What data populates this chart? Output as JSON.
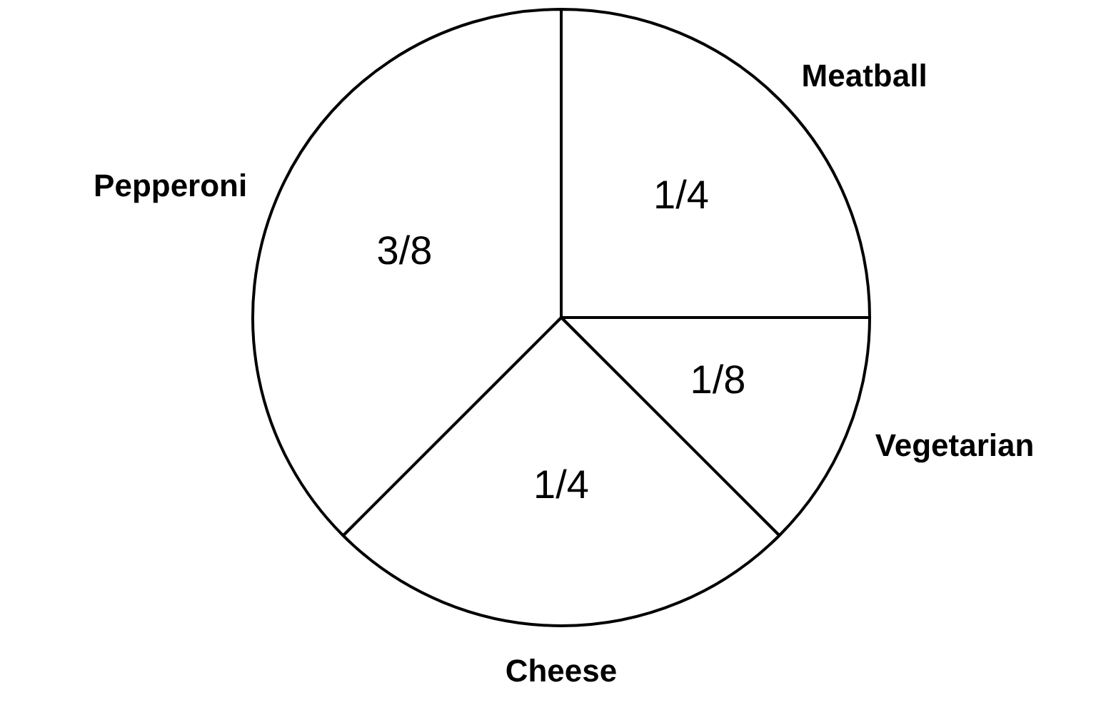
{
  "chart_data": {
    "type": "pie",
    "categories": [
      "Meatball",
      "Vegetarian",
      "Cheese",
      "Pepperoni"
    ],
    "values": [
      0.25,
      0.125,
      0.25,
      0.375
    ],
    "colors": [
      "#ffffff",
      "#ffffff",
      "#ffffff",
      "#ffffff"
    ],
    "value_labels": [
      "1/4",
      "1/8",
      "1/4",
      "3/8"
    ],
    "legend": false
  }
}
